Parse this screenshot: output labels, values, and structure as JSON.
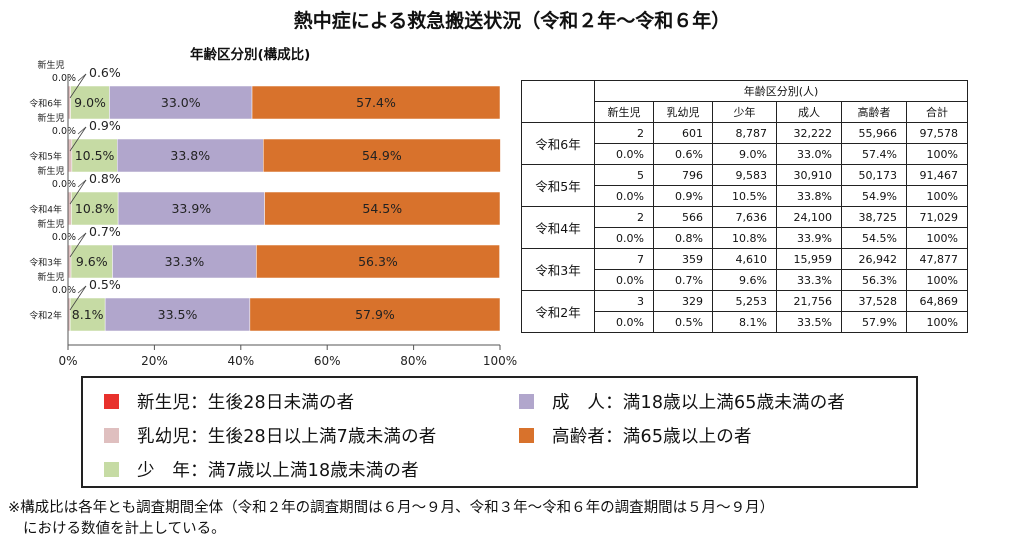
{
  "title": "熱中症による救急搬送状況（令和２年～令和６年）",
  "chart_subtitle": "年齢区分別(構成比)",
  "chart_data": {
    "type": "bar",
    "orientation": "horizontal",
    "stacked": true,
    "categories": [
      "令和6年",
      "令和5年",
      "令和4年",
      "令和3年",
      "令和2年"
    ],
    "series": [
      {
        "name": "新生児",
        "values": [
          0.0,
          0.0,
          0.0,
          0.0,
          0.0
        ],
        "labels": [
          "0.0%",
          "0.0%",
          "0.0%",
          "0.0%",
          "0.0%"
        ],
        "color": "#e8312c"
      },
      {
        "name": "乳幼児",
        "values": [
          0.6,
          0.9,
          0.8,
          0.7,
          0.5
        ],
        "labels": [
          "0.6%",
          "0.9%",
          "0.8%",
          "0.7%",
          "0.5%"
        ],
        "color": "#dfbfbf"
      },
      {
        "name": "少年",
        "values": [
          9.0,
          10.5,
          10.8,
          9.6,
          8.1
        ],
        "labels": [
          "9.0%",
          "10.5%",
          "10.8%",
          "9.6%",
          "8.1%"
        ],
        "color": "#c6dba4"
      },
      {
        "name": "成人",
        "values": [
          33.0,
          33.8,
          33.9,
          33.3,
          33.5
        ],
        "labels": [
          "33.0%",
          "33.8%",
          "33.9%",
          "33.3%",
          "33.5%"
        ],
        "color": "#b1a6cc"
      },
      {
        "name": "高齢者",
        "values": [
          57.4,
          54.9,
          54.5,
          56.3,
          57.9
        ],
        "labels": [
          "57.4%",
          "54.9%",
          "54.5%",
          "56.3%",
          "57.9%"
        ],
        "color": "#d8722c"
      }
    ],
    "small_label": "新生児",
    "xlim": [
      0,
      100
    ],
    "xticks": [
      "0%",
      "20%",
      "40%",
      "60%",
      "80%",
      "100%"
    ],
    "grid": false
  },
  "table": {
    "header_group": "年齢区分別(人)",
    "columns": [
      "新生児",
      "乳幼児",
      "少年",
      "成人",
      "高齢者",
      "合計"
    ],
    "rows": [
      {
        "year": "令和6年",
        "counts": [
          "2",
          "601",
          "8,787",
          "32,222",
          "55,966",
          "97,578"
        ],
        "ratios": [
          "0.0%",
          "0.6%",
          "9.0%",
          "33.0%",
          "57.4%",
          "100%"
        ]
      },
      {
        "year": "令和5年",
        "counts": [
          "5",
          "796",
          "9,583",
          "30,910",
          "50,173",
          "91,467"
        ],
        "ratios": [
          "0.0%",
          "0.9%",
          "10.5%",
          "33.8%",
          "54.9%",
          "100%"
        ]
      },
      {
        "year": "令和4年",
        "counts": [
          "2",
          "566",
          "7,636",
          "24,100",
          "38,725",
          "71,029"
        ],
        "ratios": [
          "0.0%",
          "0.8%",
          "10.8%",
          "33.9%",
          "54.5%",
          "100%"
        ]
      },
      {
        "year": "令和3年",
        "counts": [
          "7",
          "359",
          "4,610",
          "15,959",
          "26,942",
          "47,877"
        ],
        "ratios": [
          "0.0%",
          "0.7%",
          "9.6%",
          "33.3%",
          "56.3%",
          "100%"
        ]
      },
      {
        "year": "令和2年",
        "counts": [
          "3",
          "329",
          "5,253",
          "21,756",
          "37,528",
          "64,869"
        ],
        "ratios": [
          "0.0%",
          "0.5%",
          "8.1%",
          "33.5%",
          "57.9%",
          "100%"
        ]
      }
    ]
  },
  "legend": [
    {
      "text": "新生児：生後28日未満の者",
      "color": "#e8312c"
    },
    {
      "text": "乳幼児：生後28日以上満7歳未満の者",
      "color": "#dfbfbf"
    },
    {
      "text": "少　年：満7歳以上満18歳未満の者",
      "color": "#c6dba4"
    },
    {
      "text": "成　人：満18歳以上満65歳未満の者",
      "color": "#b1a6cc"
    },
    {
      "text": "高齢者：満65歳以上の者",
      "color": "#d8722c"
    }
  ],
  "note": {
    "line1": "※構成比は各年とも調査期間全体（令和２年の調査期間は６月～９月、令和３年～令和６年の調査期間は５月～９月）",
    "line2": "における数値を計上している。"
  }
}
